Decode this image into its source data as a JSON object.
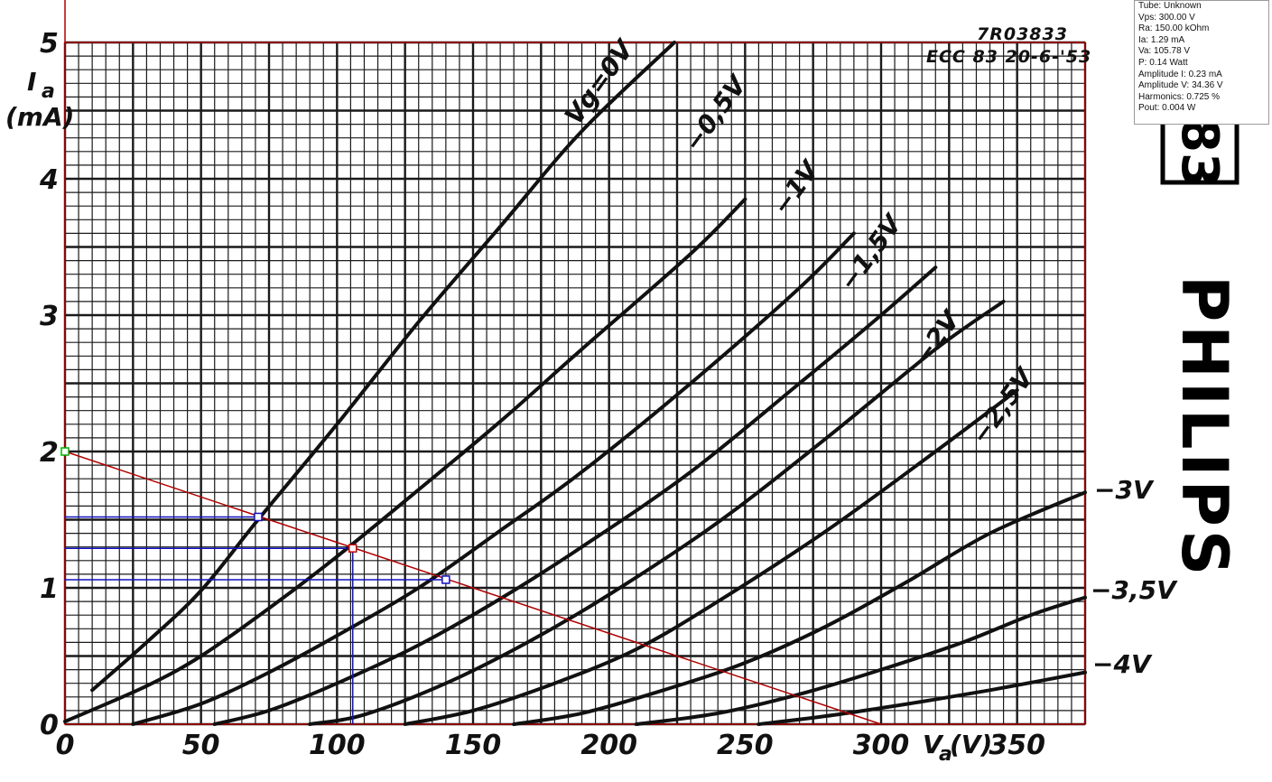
{
  "chart_data": {
    "type": "line",
    "stamp_top": "7R03833",
    "stamp_sub": "ECC 83  20-6-'53",
    "brand": "PHILIPS",
    "brand_box_text": "83",
    "y_axis": {
      "label_symbol": "I",
      "label_subscript": "a",
      "label_unit": "(mA)",
      "min": 0,
      "max": 5,
      "ticks": [
        "0",
        "1",
        "2",
        "3",
        "4",
        "5"
      ]
    },
    "x_axis": {
      "label_symbol": "V",
      "label_subscript": "a",
      "label_unit": "(V)",
      "min": 0,
      "max": 375,
      "ticks": [
        {
          "v": 0,
          "t": "0"
        },
        {
          "v": 50,
          "t": "50"
        },
        {
          "v": 100,
          "t": "100"
        },
        {
          "v": 150,
          "t": "150"
        },
        {
          "v": 200,
          "t": "200"
        },
        {
          "v": 250,
          "t": "250"
        },
        {
          "v": 300,
          "t": "300"
        },
        {
          "v": 350,
          "t": "350"
        }
      ]
    },
    "grid": true,
    "series": [
      {
        "name": "Vg=0V",
        "label": "Vg=0V",
        "points": [
          [
            10,
            0.25
          ],
          [
            30,
            0.6
          ],
          [
            50,
            0.98
          ],
          [
            71,
            1.5
          ],
          [
            100,
            2.2
          ],
          [
            130,
            2.95
          ],
          [
            160,
            3.65
          ],
          [
            190,
            4.35
          ],
          [
            224,
            5.0
          ]
        ]
      },
      {
        "name": "-0,5V",
        "label": "−0,5V",
        "points": [
          [
            0,
            0.02
          ],
          [
            30,
            0.28
          ],
          [
            50,
            0.5
          ],
          [
            75,
            0.85
          ],
          [
            100,
            1.23
          ],
          [
            130,
            1.72
          ],
          [
            160,
            2.22
          ],
          [
            190,
            2.75
          ],
          [
            230,
            3.45
          ],
          [
            250,
            3.85
          ]
        ]
      },
      {
        "name": "-1V",
        "label": "−1V",
        "points": [
          [
            25,
            0.0
          ],
          [
            50,
            0.15
          ],
          [
            75,
            0.38
          ],
          [
            100,
            0.65
          ],
          [
            130,
            1.0
          ],
          [
            160,
            1.42
          ],
          [
            190,
            1.85
          ],
          [
            230,
            2.5
          ],
          [
            270,
            3.2
          ],
          [
            290,
            3.6
          ]
        ]
      },
      {
        "name": "-1,5V",
        "label": "−1,5V",
        "points": [
          [
            55,
            0.0
          ],
          [
            75,
            0.1
          ],
          [
            100,
            0.3
          ],
          [
            130,
            0.58
          ],
          [
            160,
            0.92
          ],
          [
            190,
            1.3
          ],
          [
            230,
            1.85
          ],
          [
            270,
            2.5
          ],
          [
            300,
            3.0
          ],
          [
            320,
            3.35
          ]
        ]
      },
      {
        "name": "-2V",
        "label": "−2V",
        "points": [
          [
            90,
            0.0
          ],
          [
            110,
            0.07
          ],
          [
            140,
            0.3
          ],
          [
            170,
            0.6
          ],
          [
            200,
            0.95
          ],
          [
            240,
            1.48
          ],
          [
            280,
            2.1
          ],
          [
            320,
            2.75
          ],
          [
            345,
            3.1
          ]
        ]
      },
      {
        "name": "-2,5V",
        "label": "−2,5V",
        "points": [
          [
            125,
            0.0
          ],
          [
            150,
            0.1
          ],
          [
            180,
            0.3
          ],
          [
            210,
            0.55
          ],
          [
            240,
            0.9
          ],
          [
            280,
            1.42
          ],
          [
            320,
            2.0
          ],
          [
            350,
            2.45
          ]
        ]
      },
      {
        "name": "-3V",
        "label": "−3V",
        "points": [
          [
            165,
            0.0
          ],
          [
            190,
            0.08
          ],
          [
            220,
            0.25
          ],
          [
            250,
            0.45
          ],
          [
            280,
            0.72
          ],
          [
            310,
            1.05
          ],
          [
            340,
            1.4
          ],
          [
            375,
            1.7
          ]
        ]
      },
      {
        "name": "-3,5V",
        "label": "−3,5V",
        "points": [
          [
            210,
            0.0
          ],
          [
            240,
            0.08
          ],
          [
            270,
            0.22
          ],
          [
            300,
            0.4
          ],
          [
            330,
            0.6
          ],
          [
            355,
            0.8
          ],
          [
            375,
            0.93
          ]
        ]
      },
      {
        "name": "-4V",
        "label": "−4V",
        "points": [
          [
            255,
            0.0
          ],
          [
            280,
            0.06
          ],
          [
            310,
            0.15
          ],
          [
            340,
            0.25
          ],
          [
            375,
            0.38
          ]
        ]
      }
    ],
    "load_line": {
      "color": "#b00000",
      "points": [
        [
          0,
          2.0
        ],
        [
          300,
          0.0
        ]
      ]
    },
    "operating_points": [
      {
        "x": 105.78,
        "y": 1.29,
        "color": "#c00000"
      },
      {
        "x": 71,
        "y": 1.52,
        "color": "#1010c0"
      },
      {
        "x": 140,
        "y": 1.06,
        "color": "#1010c0"
      }
    ],
    "origin_marker": {
      "x": 0,
      "y": 2.0,
      "color": "#00b000"
    },
    "guide_color": "#1010c0"
  },
  "info_panel": {
    "lines": [
      "Tube: Unknown",
      "Vps: 300.00 V",
      "Ra: 150.00 kOhm",
      "Ia: 1.29 mA",
      "Va: 105.78 V",
      "P: 0.14 Watt",
      "Amplitude I: 0.23 mA",
      "Amplitude V: 34.36 V",
      "Harmonics: 0.725 %",
      "Pout: 0.004 W"
    ]
  }
}
